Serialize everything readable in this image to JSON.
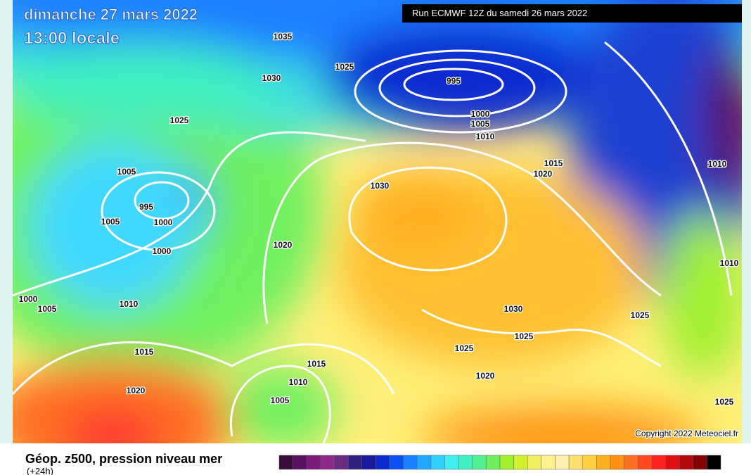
{
  "header": {
    "date": "dimanche 27 mars 2022",
    "time": "13:00 locale",
    "run": "Run ECMWF 12Z du samedi 26 mars 2022"
  },
  "isobar_labels": [
    "1035",
    "1030",
    "1025",
    "995",
    "1000",
    "1005",
    "1010",
    "1025",
    "1005",
    "995",
    "1005",
    "1000",
    "1000",
    "1030",
    "1020",
    "1015",
    "1010",
    "1020",
    "1010",
    "1000",
    "1005",
    "1010",
    "1030",
    "1025",
    "1025",
    "1025",
    "1015",
    "1015",
    "1010",
    "1020",
    "1020",
    "1005",
    "1025"
  ],
  "copyright": "Copyright 2022 Meteociel.fr",
  "legend": {
    "title": "Géop. z500, pression niveau mer",
    "subtitle": "(+24h)",
    "colors": [
      "#3a0a3a",
      "#5a1060",
      "#7a1a7a",
      "#8a2a8a",
      "#6a2a80",
      "#302080",
      "#1a1aa0",
      "#0a2ad0",
      "#0a50f0",
      "#1a80ff",
      "#20a8ff",
      "#30d0ff",
      "#40f0f0",
      "#40f0c0",
      "#50f090",
      "#70f060",
      "#a0f030",
      "#d0f030",
      "#f0f060",
      "#fff090",
      "#fff0b0",
      "#ffe070",
      "#ffd040",
      "#ffb020",
      "#ff9010",
      "#ff7020",
      "#ff4a20",
      "#ff2020",
      "#e01010",
      "#b00808",
      "#800404",
      "#000000"
    ]
  }
}
